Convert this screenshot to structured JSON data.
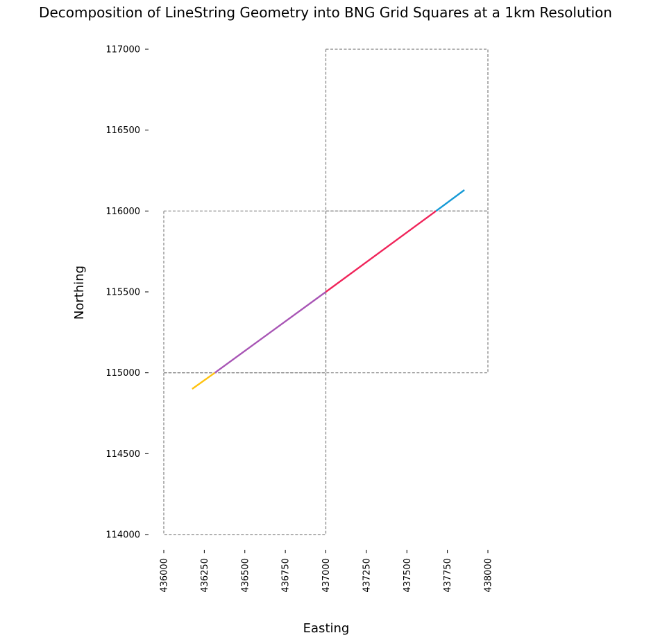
{
  "chart_data": {
    "type": "line",
    "title": "Decomposition of LineString Geometry into BNG Grid Squares at a 1km Resolution",
    "xlabel": "Easting",
    "ylabel": "Northing",
    "xlim": [
      436000,
      438000
    ],
    "ylim": [
      114000,
      117000
    ],
    "xticks": [
      "436000",
      "436250",
      "436500",
      "436750",
      "437000",
      "437250",
      "437500",
      "437750",
      "438000"
    ],
    "yticks": [
      "114000",
      "114500",
      "115000",
      "115500",
      "116000",
      "116500",
      "117000"
    ],
    "grid": false,
    "grid_squares": [
      {
        "x": [
          436000,
          437000
        ],
        "y": [
          114000,
          115000
        ]
      },
      {
        "x": [
          436000,
          437000
        ],
        "y": [
          115000,
          116000
        ]
      },
      {
        "x": [
          437000,
          438000
        ],
        "y": [
          115000,
          116000
        ]
      },
      {
        "x": [
          437000,
          438000
        ],
        "y": [
          116000,
          117000
        ]
      }
    ],
    "segments": [
      {
        "color": "#ffc20e",
        "x": [
          436175,
          436315
        ],
        "y": [
          114900,
          115000
        ]
      },
      {
        "color": "#a855b5",
        "x": [
          436315,
          437000
        ],
        "y": [
          115000,
          115500
        ]
      },
      {
        "color": "#f0245a",
        "x": [
          437000,
          437680
        ],
        "y": [
          115500,
          116000
        ]
      },
      {
        "color": "#159ad6",
        "x": [
          437680,
          437855
        ],
        "y": [
          116000,
          116130
        ]
      }
    ]
  }
}
